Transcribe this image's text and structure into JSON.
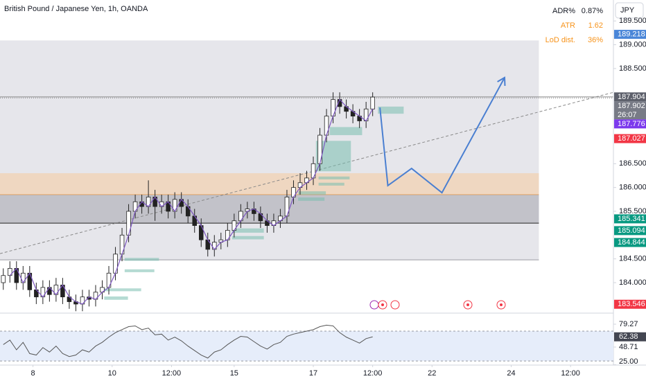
{
  "chart_data": {
    "type": "candlestick",
    "title": "British Pound / Japanese Yen, 1h, OANDA",
    "currency": "JPY",
    "stats": [
      {
        "name": "ADR%",
        "value": "0.87%",
        "color": "#131722"
      },
      {
        "name": "ATR",
        "value": "1.62",
        "color": "#f7931a"
      },
      {
        "name": "LoD dist.",
        "value": "36%",
        "color": "#f7931a"
      }
    ],
    "up_color": "#ffffff",
    "down_color": "#222222",
    "wick_color": "#222222",
    "open": [
      184.0,
      184.15,
      184.3,
      184.0,
      184.2,
      183.85,
      183.7,
      183.9,
      183.75,
      183.95,
      183.7,
      183.6,
      183.55,
      183.7,
      183.65,
      183.8,
      183.9,
      184.2,
      184.6,
      185.0,
      185.5,
      185.7,
      185.6,
      185.8,
      185.6,
      185.7,
      185.5,
      185.75,
      185.6,
      185.4,
      185.2,
      184.9,
      184.7,
      184.85,
      184.9,
      185.1,
      185.3,
      185.5,
      185.55,
      185.45,
      185.3,
      185.2,
      185.3,
      185.4,
      185.8,
      186.0,
      186.1,
      186.2,
      186.5,
      187.1,
      187.5,
      187.85,
      187.7,
      187.6,
      187.5,
      187.4,
      187.65
    ],
    "high": [
      184.3,
      184.45,
      184.45,
      184.35,
      184.35,
      184.0,
      184.05,
      184.05,
      184.1,
      184.1,
      183.85,
      183.75,
      183.85,
      183.85,
      183.95,
      184.05,
      184.35,
      184.75,
      185.15,
      185.65,
      185.85,
      185.85,
      186.15,
      185.95,
      185.85,
      185.85,
      185.9,
      185.9,
      185.75,
      185.55,
      185.35,
      185.05,
      185.0,
      185.05,
      185.25,
      185.45,
      185.65,
      185.7,
      185.7,
      185.6,
      185.45,
      185.45,
      185.55,
      185.95,
      186.15,
      186.3,
      186.35,
      186.65,
      187.25,
      187.65,
      188.0,
      188.0,
      187.85,
      187.75,
      187.65,
      187.8,
      188.0
    ],
    "low": [
      183.85,
      184.0,
      183.85,
      183.85,
      183.7,
      183.55,
      183.55,
      183.6,
      183.6,
      183.55,
      183.45,
      183.4,
      183.4,
      183.5,
      183.5,
      183.65,
      183.75,
      184.05,
      184.45,
      184.85,
      185.35,
      185.45,
      185.45,
      185.3,
      185.45,
      185.35,
      185.35,
      185.45,
      185.25,
      185.05,
      184.75,
      184.55,
      184.55,
      184.7,
      184.75,
      184.95,
      185.15,
      185.35,
      185.3,
      185.15,
      185.05,
      185.05,
      185.15,
      185.25,
      185.65,
      185.85,
      185.95,
      186.05,
      186.35,
      186.95,
      187.35,
      187.55,
      187.45,
      187.35,
      187.25,
      187.25,
      187.5
    ],
    "close": [
      184.15,
      184.3,
      184.0,
      184.2,
      183.85,
      183.7,
      183.9,
      183.75,
      183.95,
      183.7,
      183.6,
      183.55,
      183.7,
      183.65,
      183.8,
      183.9,
      184.2,
      184.6,
      185.0,
      185.5,
      185.7,
      185.6,
      185.8,
      185.6,
      185.7,
      185.5,
      185.75,
      185.6,
      185.4,
      185.2,
      184.9,
      184.7,
      184.85,
      184.9,
      185.1,
      185.3,
      185.5,
      185.55,
      185.45,
      185.3,
      185.2,
      185.3,
      185.4,
      185.8,
      186.0,
      186.1,
      186.2,
      186.5,
      187.1,
      187.5,
      187.85,
      187.7,
      187.6,
      187.5,
      187.4,
      187.65,
      187.9
    ],
    "ma": [
      null,
      184.15,
      184.3,
      184.0,
      184.2,
      183.85,
      183.7,
      183.9,
      183.75,
      183.95,
      183.7,
      183.6,
      183.55,
      183.7,
      183.65,
      183.8,
      183.9,
      184.2,
      184.6,
      185.0,
      185.5,
      185.7,
      185.6,
      185.8,
      185.6,
      185.7,
      185.5,
      185.75,
      185.6,
      185.4,
      185.2,
      184.9,
      184.7,
      184.85,
      184.9,
      185.1,
      185.3,
      185.5,
      185.55,
      185.45,
      185.3,
      185.2,
      185.3,
      185.4,
      185.8,
      186.0,
      186.1,
      186.2,
      186.5,
      187.1,
      187.5,
      187.85,
      187.7,
      187.6,
      187.5,
      187.4,
      187.65
    ],
    "ma_color": "#7e57c2",
    "xlim": [
      0,
      93
    ],
    "xticks": [
      {
        "value": 5,
        "label": "8"
      },
      {
        "value": 17,
        "label": "10"
      },
      {
        "value": 26,
        "label": "12:00"
      },
      {
        "value": 35.5,
        "label": "15"
      },
      {
        "value": 47.5,
        "label": "17"
      },
      {
        "value": 56.5,
        "label": "12:00"
      },
      {
        "value": 65.5,
        "label": "22"
      },
      {
        "value": 77.5,
        "label": "24"
      },
      {
        "value": 86.5,
        "label": "12:00"
      }
    ],
    "ylim": [
      183.36,
      189.94
    ],
    "yticks": [
      {
        "value": 189.5,
        "label": "189.500"
      },
      {
        "value": 189,
        "label": "189.000"
      },
      {
        "value": 188.5,
        "label": "188.500"
      },
      {
        "value": 186.5,
        "label": "186.500"
      },
      {
        "value": 186,
        "label": "186.000"
      },
      {
        "value": 185.5,
        "label": "185.500"
      },
      {
        "value": 184.5,
        "label": "184.500"
      },
      {
        "value": 184,
        "label": "184.000"
      }
    ],
    "zones": [
      {
        "from": 0,
        "to": 81.7,
        "top": 189.09,
        "bottom": 184.48,
        "color": "rgba(200,200,210,0.45)",
        "stroke": "#9a9aa2"
      },
      {
        "from": 0,
        "to": 81.7,
        "top": 186.3,
        "bottom": 185.85,
        "color": "rgba(245,205,165,0.6)",
        "stroke": "#f0a050"
      },
      {
        "from": 0,
        "to": 81.7,
        "top": 185.85,
        "bottom": 185.25,
        "color": "rgba(150,150,160,0.45)",
        "stroke": "#222222"
      }
    ],
    "boxes": [
      {
        "from": 47.9,
        "to": 53.2,
        "top": 186.98,
        "bottom": 186.34
      },
      {
        "from": 57.3,
        "to": 61.2,
        "top": 187.7,
        "bottom": 187.55
      },
      {
        "from": 50,
        "to": 54.9,
        "top": 187.27,
        "bottom": 187.1
      },
      {
        "from": 48.3,
        "to": 53,
        "top": 186.23,
        "bottom": 186.17
      },
      {
        "from": 48.3,
        "to": 52.2,
        "top": 186.1,
        "bottom": 186.04
      },
      {
        "from": 45.2,
        "to": 49.4,
        "top": 185.92,
        "bottom": 185.85
      },
      {
        "from": 45.2,
        "to": 49.2,
        "top": 185.79,
        "bottom": 185.72
      },
      {
        "from": 35.2,
        "to": 40,
        "top": 185.14,
        "bottom": 185.05
      },
      {
        "from": 35.2,
        "to": 40,
        "top": 184.98,
        "bottom": 184.91
      },
      {
        "from": 18.9,
        "to": 24.1,
        "top": 184.52,
        "bottom": 184.46
      },
      {
        "from": 18.9,
        "to": 23.4,
        "top": 184.28,
        "bottom": 184.22
      },
      {
        "from": 15.8,
        "to": 21.4,
        "top": 183.88,
        "bottom": 183.82
      },
      {
        "from": 15.8,
        "to": 19.4,
        "top": 183.71,
        "bottom": 183.64
      }
    ],
    "box_color": "rgba(120,190,175,0.55)",
    "hlines": [
      {
        "value": 187.904,
        "color": "#888888",
        "dash": ""
      },
      {
        "value": 187.88,
        "color": "#888888",
        "dash": "1,2"
      }
    ],
    "trendline": {
      "x": [
        0,
        93
      ],
      "y": [
        184.61,
        188.0
      ],
      "color": "#888888"
    },
    "projection": {
      "x": [
        57.6,
        58.8,
        62.4,
        67.0,
        76.5
      ],
      "y": [
        187.68,
        186.04,
        186.4,
        185.89,
        188.31
      ],
      "color": "#4a7fd1"
    },
    "badges": [
      {
        "value": 189.218,
        "label": "189.218",
        "color": "#4a86d8"
      },
      {
        "value": 187.904,
        "label": "187.904",
        "color": "#5d606b"
      },
      {
        "value": 187.902,
        "label": "187.902",
        "sub": "26:07",
        "color": "#787b86"
      },
      {
        "value": 187.776,
        "label": "187.776",
        "color": "#7c3aed"
      },
      {
        "value": 187.027,
        "label": "187.027",
        "color": "#f23645"
      },
      {
        "value": 185.341,
        "label": "185.341",
        "color": "#089981"
      },
      {
        "value": 185.094,
        "label": "185.094",
        "color": "#089981"
      },
      {
        "value": 184.844,
        "label": "184.844",
        "color": "#089981"
      },
      {
        "value": 183.546,
        "label": "183.546",
        "color": "#f23645"
      }
    ],
    "rsi": {
      "values": [
        52,
        58,
        45,
        55,
        40,
        38,
        48,
        42,
        50,
        40,
        36,
        38,
        45,
        42,
        50,
        55,
        62,
        68,
        72,
        76,
        77,
        72,
        74,
        65,
        66,
        58,
        62,
        57,
        50,
        44,
        38,
        34,
        42,
        45,
        52,
        58,
        63,
        62,
        56,
        50,
        46,
        52,
        55,
        63,
        66,
        68,
        70,
        72,
        76,
        78,
        77,
        68,
        62,
        58,
        54,
        60,
        62.38
      ],
      "color": "#555555",
      "ylim": [
        24.6,
        94.1
      ],
      "bands": [
        70,
        30
      ],
      "band_color": "#e6edfa",
      "yticks": [
        79.27,
        48.71,
        {
          "value": 25,
          "label": "25.00"
        }
      ],
      "current": {
        "value": 62.38,
        "label": "62.38",
        "color": "#434651"
      }
    }
  }
}
